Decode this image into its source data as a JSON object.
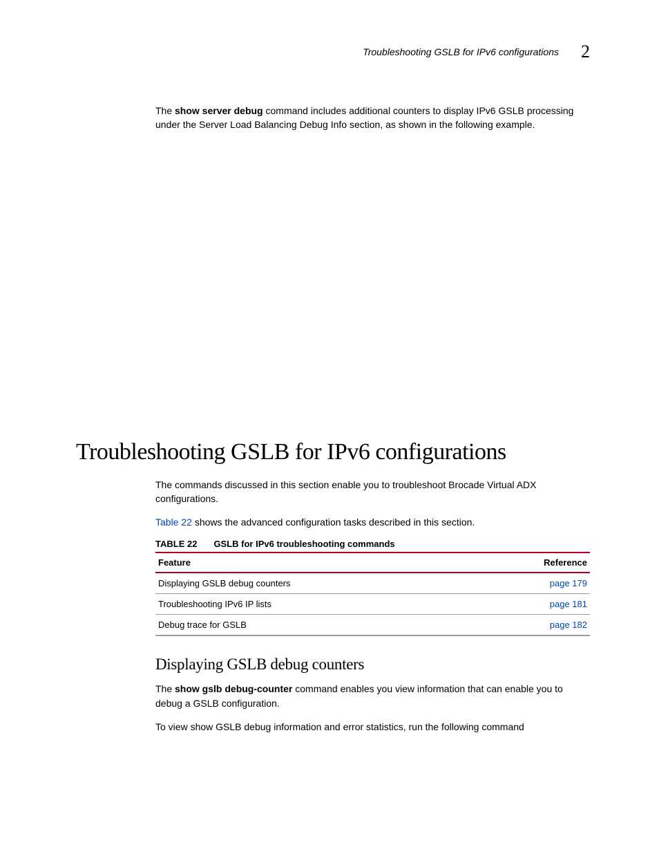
{
  "header": {
    "running_title": "Troubleshooting GSLB for IPv6 configurations",
    "chapter_number": "2"
  },
  "intro_paragraph": {
    "pre": "The ",
    "cmd": "show server debug",
    "post": " command includes additional counters to display IPv6 GSLB processing under the Server Load Balancing Debug Info section, as shown in the following example."
  },
  "section": {
    "title": "Troubleshooting GSLB for IPv6 configurations",
    "para1": "The commands discussed in this section enable you to troubleshoot Brocade Virtual ADX configurations.",
    "para2_link": "Table 22",
    "para2_rest": " shows the advanced configuration tasks described in this section."
  },
  "table": {
    "caption_label": "TABLE 22",
    "caption_title": "GSLB for IPv6 troubleshooting commands",
    "columns": [
      "Feature",
      "Reference"
    ],
    "rows": [
      {
        "feature": "Displaying GSLB debug counters",
        "reference": "page 179"
      },
      {
        "feature": "Troubleshooting IPv6 IP lists",
        "reference": "page 181"
      },
      {
        "feature": "Debug trace for GSLB",
        "reference": "page 182"
      }
    ],
    "border_top_color": "#b00020",
    "row_border_color": "#9e9e9e",
    "link_color": "#0047ab"
  },
  "subsection": {
    "title": "Displaying GSLB debug counters",
    "para1_pre": "The ",
    "para1_cmd": "show gslb debug-counter",
    "para1_post": " command enables you view information that can enable you to debug a GSLB configuration.",
    "para2": "To view show GSLB debug information and error statistics, run the following command"
  }
}
